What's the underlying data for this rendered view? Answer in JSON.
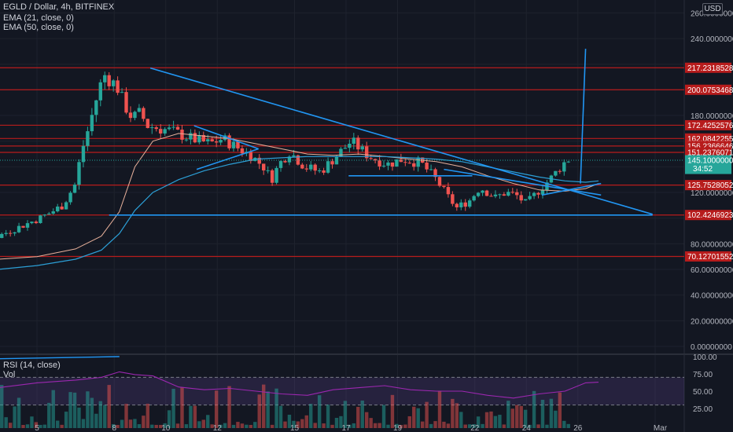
{
  "header": {
    "symbol": "EGLD / Dollar, 4h, BITFINEX",
    "ema21": "EMA (21, close, 0)",
    "ema50": "EMA (50, close, 0)",
    "currency": "USD"
  },
  "rsi_panel": {
    "title": "RSI (14, close)",
    "vol_label": "Vol",
    "ticks": [
      "100.00",
      "75.00",
      "50.00",
      "25.00"
    ]
  },
  "colors": {
    "background": "#131722",
    "up": "#26a69a",
    "down": "#ef5350",
    "level_line": "#b71c1c",
    "trendline": "#2196f3",
    "ema21": "#e8b19b",
    "ema50": "#2c9fd6",
    "rsi": "#9c27b0",
    "current_price": "#26a69a"
  },
  "chart_data": {
    "type": "candlestick",
    "title": "EGLD / Dollar, 4h, BITFINEX",
    "x_tick_labels": [
      "5",
      "8",
      "10",
      "12",
      "15",
      "17",
      "19",
      "22",
      "24",
      "26",
      "Mar"
    ],
    "y_tick_labels": [
      "260.00000000",
      "240.00000000",
      "180.00000000",
      "120.00000000",
      "80.00000000",
      "60.00000000",
      "40.00000000",
      "20.00000000",
      "0.00000000"
    ],
    "ylim": [
      -4,
      265
    ],
    "horizontal_levels": [
      217.23185284,
      200.07534686,
      172.42525767,
      162.0842255,
      156.23666461,
      151.23760718,
      125.75280524,
      102.4246923,
      70.12701552
    ],
    "level_labels": [
      "217.23185284",
      "200.07534686",
      "172.42525767",
      "162.08422550",
      "156.23666461",
      "151.23760718",
      "125.75280524",
      "102.42469230",
      "70.12701552"
    ],
    "current_price": "145.10000000",
    "countdown": "34:52",
    "series": [
      {
        "name": "EMA (21, close, 0)",
        "x_days": [
          3.5,
          5.0,
          6.5,
          7.5,
          8.2,
          8.8,
          9.5,
          10.5,
          11.5,
          12.5,
          13.5,
          14.5,
          15.5,
          16.5,
          17.5,
          18.5,
          19.5,
          20.5,
          21.5,
          22.5,
          23.5,
          24.5,
          25.5,
          26.3,
          26.8
        ],
        "values": [
          68,
          70,
          76,
          86,
          105,
          140,
          160,
          166,
          164,
          162,
          158,
          154,
          150,
          149,
          150,
          148,
          146,
          144,
          140,
          133,
          127,
          122,
          121,
          123,
          127
        ]
      },
      {
        "name": "EMA (50, close, 0)",
        "x_days": [
          3.5,
          5.0,
          6.5,
          7.5,
          8.2,
          8.8,
          9.5,
          10.5,
          11.5,
          12.5,
          13.5,
          14.5,
          15.5,
          16.5,
          17.5,
          18.5,
          19.5,
          20.5,
          21.5,
          22.5,
          23.5,
          24.5,
          25.5,
          26.3,
          26.8
        ],
        "values": [
          60,
          63,
          68,
          75,
          88,
          106,
          120,
          130,
          137,
          142,
          146,
          147,
          148,
          148,
          148,
          148,
          147,
          146,
          144,
          140,
          136,
          132,
          129,
          128,
          129
        ]
      },
      {
        "name": "RSI (14, close)",
        "x_days": [
          3.5,
          5.0,
          6.5,
          7.5,
          8.2,
          8.8,
          9.5,
          10.5,
          11.5,
          12.5,
          13.5,
          14.5,
          15.5,
          16.5,
          17.5,
          18.5,
          19.5,
          20.5,
          21.5,
          22.5,
          23.5,
          24.5,
          25.5,
          26.3,
          26.8
        ],
        "values": [
          55,
          62,
          66,
          70,
          78,
          74,
          72,
          56,
          52,
          54,
          50,
          46,
          44,
          52,
          55,
          58,
          52,
          50,
          50,
          44,
          40,
          46,
          50,
          62,
          63
        ]
      }
    ],
    "trendlines": [
      {
        "x_days": [
          9.4,
          28.9
        ],
        "values": [
          217,
          103
        ]
      },
      {
        "x_days": [
          7.8,
          28.9
        ],
        "values": [
          102.4,
          102.4
        ]
      },
      {
        "x_days": [
          17.1,
          21.9
        ],
        "values": [
          133,
          133
        ]
      },
      {
        "x_days": [
          11.1,
          13.6
        ],
        "values": [
          172,
          154
        ]
      },
      {
        "x_days": [
          11.2,
          13.6
        ],
        "values": [
          138,
          154
        ]
      },
      {
        "x_days": [
          20.8,
          26.9
        ],
        "values": [
          138,
          118
        ]
      },
      {
        "x_days": [
          26.1,
          26.3
        ],
        "values": [
          127,
          232
        ]
      },
      {
        "x_days": [
          24.6,
          26.9
        ],
        "values": [
          118,
          127
        ]
      }
    ]
  }
}
